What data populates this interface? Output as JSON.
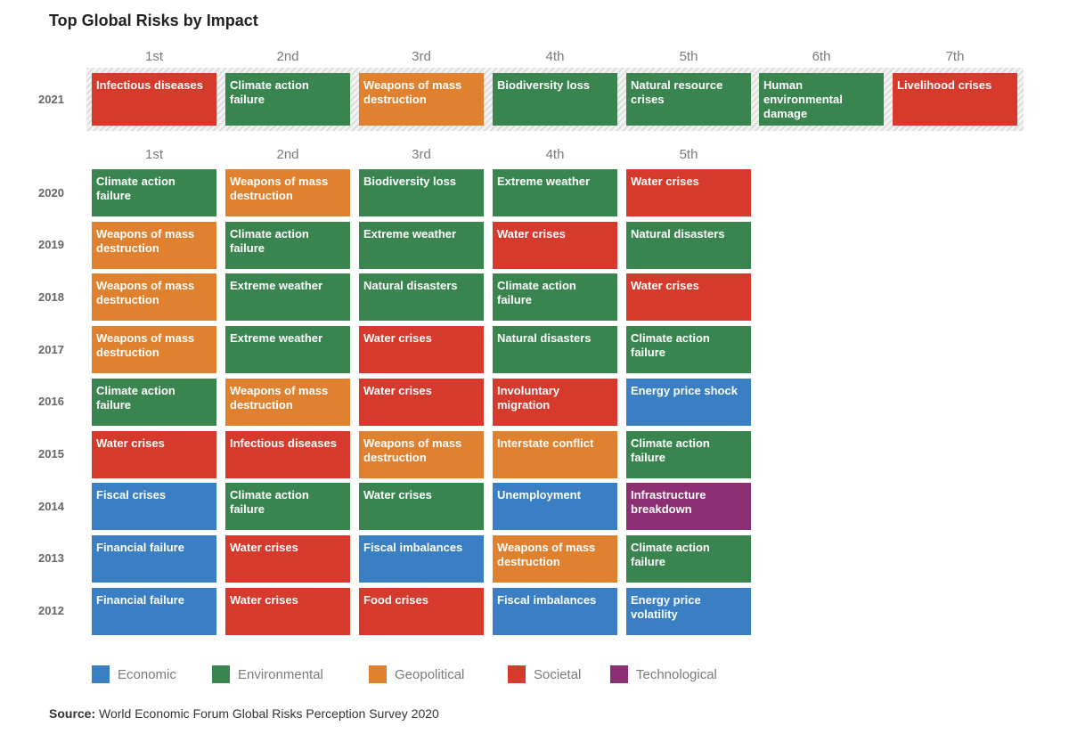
{
  "title": "Top Global Risks by Impact",
  "source": {
    "label": "Source:",
    "text": "World Economic Forum Global Risks Perception Survey 2020"
  },
  "colors": {
    "Economic": "#3a7fc3",
    "Environmental": "#3a8450",
    "Geopolitical": "#e0812f",
    "Societal": "#d53a2c",
    "Technological": "#8b2e72"
  },
  "legend": [
    {
      "label": "Economic",
      "category": "Economic"
    },
    {
      "label": "Environmental",
      "category": "Environmental"
    },
    {
      "label": "Geopolitical",
      "category": "Geopolitical"
    },
    {
      "label": "Societal",
      "category": "Societal"
    },
    {
      "label": "Technological",
      "category": "Technological"
    }
  ],
  "chart_data": {
    "type": "table",
    "sections": [
      {
        "ranks": [
          "1st",
          "2nd",
          "3rd",
          "4th",
          "5th",
          "6th",
          "7th"
        ],
        "rows": [
          {
            "year": "2021",
            "risks": [
              {
                "label": "Infectious diseases",
                "category": "Societal"
              },
              {
                "label": "Climate action failure",
                "category": "Environmental"
              },
              {
                "label": "Weapons of mass destruction",
                "category": "Geopolitical"
              },
              {
                "label": "Biodiversity loss",
                "category": "Environmental"
              },
              {
                "label": "Natural resource crises",
                "category": "Environmental"
              },
              {
                "label": "Human environmental damage",
                "category": "Environmental"
              },
              {
                "label": "Livelihood crises",
                "category": "Societal"
              }
            ]
          }
        ]
      },
      {
        "ranks": [
          "1st",
          "2nd",
          "3rd",
          "4th",
          "5th"
        ],
        "rows": [
          {
            "year": "2020",
            "risks": [
              {
                "label": "Climate action failure",
                "category": "Environmental"
              },
              {
                "label": "Weapons of mass destruction",
                "category": "Geopolitical"
              },
              {
                "label": "Biodiversity loss",
                "category": "Environmental"
              },
              {
                "label": "Extreme weather",
                "category": "Environmental"
              },
              {
                "label": "Water crises",
                "category": "Societal"
              }
            ]
          },
          {
            "year": "2019",
            "risks": [
              {
                "label": "Weapons of mass destruction",
                "category": "Geopolitical"
              },
              {
                "label": "Climate action failure",
                "category": "Environmental"
              },
              {
                "label": "Extreme weather",
                "category": "Environmental"
              },
              {
                "label": "Water crises",
                "category": "Societal"
              },
              {
                "label": "Natural disasters",
                "category": "Environmental"
              }
            ]
          },
          {
            "year": "2018",
            "risks": [
              {
                "label": "Weapons of mass destruction",
                "category": "Geopolitical"
              },
              {
                "label": "Extreme weather",
                "category": "Environmental"
              },
              {
                "label": "Natural disasters",
                "category": "Environmental"
              },
              {
                "label": "Climate action failure",
                "category": "Environmental"
              },
              {
                "label": "Water crises",
                "category": "Societal"
              }
            ]
          },
          {
            "year": "2017",
            "risks": [
              {
                "label": "Weapons of mass destruction",
                "category": "Geopolitical"
              },
              {
                "label": "Extreme weather",
                "category": "Environmental"
              },
              {
                "label": "Water crises",
                "category": "Societal"
              },
              {
                "label": "Natural disasters",
                "category": "Environmental"
              },
              {
                "label": "Climate action failure",
                "category": "Environmental"
              }
            ]
          },
          {
            "year": "2016",
            "risks": [
              {
                "label": "Climate action failure",
                "category": "Environmental"
              },
              {
                "label": "Weapons of mass destruction",
                "category": "Geopolitical"
              },
              {
                "label": "Water crises",
                "category": "Societal"
              },
              {
                "label": "Involuntary migration",
                "category": "Societal"
              },
              {
                "label": "Energy price shock",
                "category": "Economic"
              }
            ]
          },
          {
            "year": "2015",
            "risks": [
              {
                "label": "Water crises",
                "category": "Societal"
              },
              {
                "label": "Infectious diseases",
                "category": "Societal"
              },
              {
                "label": "Weapons of mass destruction",
                "category": "Geopolitical"
              },
              {
                "label": "Interstate conflict",
                "category": "Geopolitical"
              },
              {
                "label": "Climate action failure",
                "category": "Environmental"
              }
            ]
          },
          {
            "year": "2014",
            "risks": [
              {
                "label": "Fiscal crises",
                "category": "Economic"
              },
              {
                "label": "Climate action failure",
                "category": "Environmental"
              },
              {
                "label": "Water crises",
                "category": "Environmental"
              },
              {
                "label": "Unemployment",
                "category": "Economic"
              },
              {
                "label": "Infrastructure breakdown",
                "category": "Technological"
              }
            ]
          },
          {
            "year": "2013",
            "risks": [
              {
                "label": "Financial failure",
                "category": "Economic"
              },
              {
                "label": "Water crises",
                "category": "Societal"
              },
              {
                "label": "Fiscal imbalances",
                "category": "Economic"
              },
              {
                "label": "Weapons of mass destruction",
                "category": "Geopolitical"
              },
              {
                "label": "Climate action failure",
                "category": "Environmental"
              }
            ]
          },
          {
            "year": "2012",
            "risks": [
              {
                "label": "Financial failure",
                "category": "Economic"
              },
              {
                "label": "Water crises",
                "category": "Societal"
              },
              {
                "label": "Food crises",
                "category": "Societal"
              },
              {
                "label": "Fiscal imbalances",
                "category": "Economic"
              },
              {
                "label": "Energy price volatility",
                "category": "Economic"
              }
            ]
          }
        ]
      }
    ]
  }
}
